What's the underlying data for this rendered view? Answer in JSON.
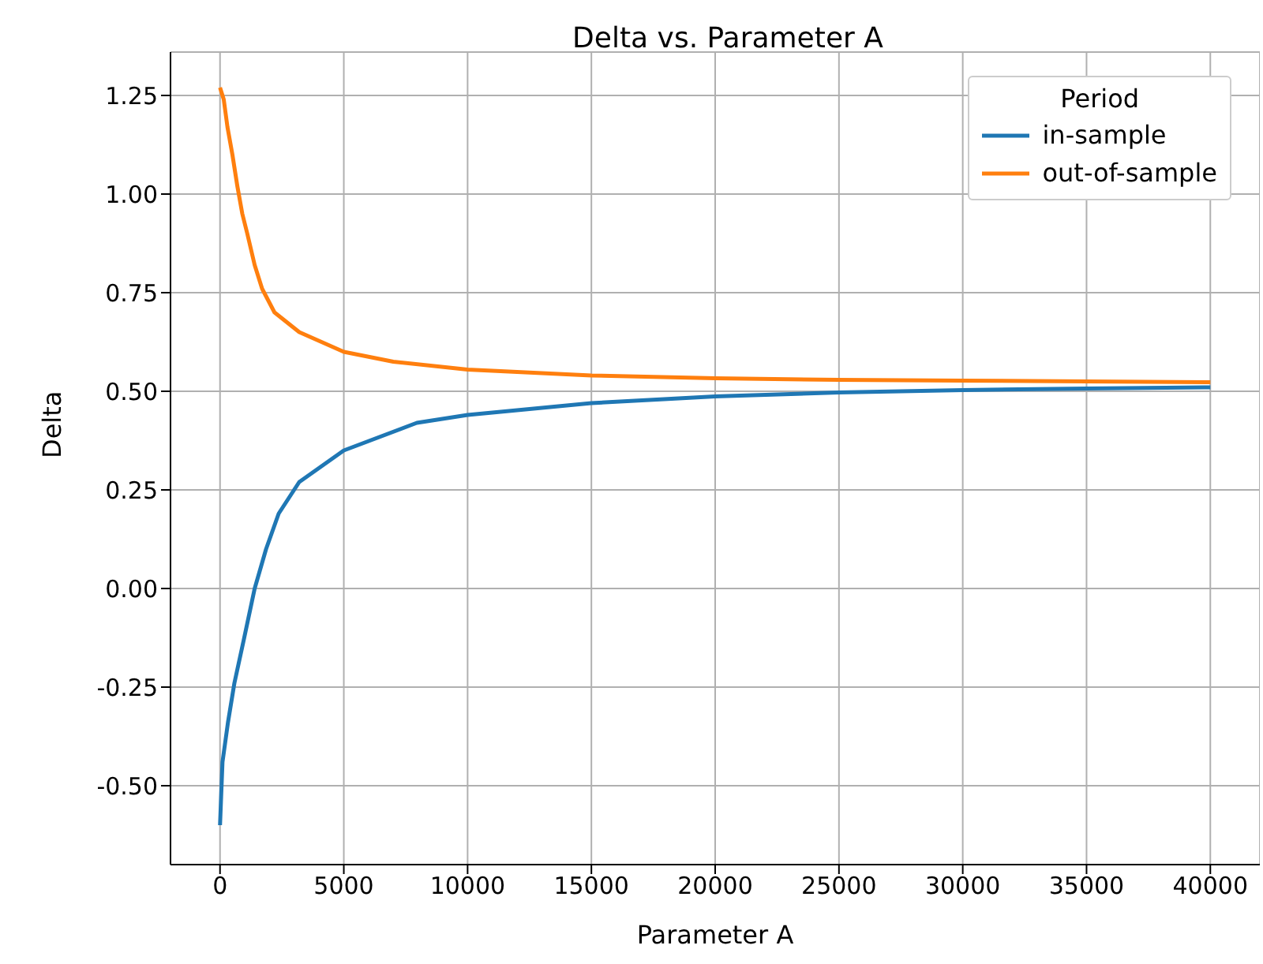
{
  "chart_data": {
    "type": "line",
    "title": "Delta vs. Parameter A",
    "xlabel": "Parameter A",
    "ylabel": "Delta",
    "legend_title": "Period",
    "legend": "top right",
    "grid": true,
    "marker": "none",
    "line_style": "solid",
    "xlim": [
      -2000,
      42000
    ],
    "xticks": [
      0,
      5000,
      10000,
      15000,
      20000,
      25000,
      30000,
      35000,
      40000
    ],
    "ylim": [
      -0.7,
      1.36
    ],
    "yticks": [
      {
        "value": -0.5,
        "label": "-0.50"
      },
      -0.25,
      {
        "value": 0,
        "label": "0.00"
      },
      0.25,
      {
        "value": 0.5,
        "label": "0.50"
      },
      0.75,
      {
        "value": 1,
        "label": "1.00"
      },
      1.25
    ],
    "series": [
      {
        "name": "in-sample",
        "color": "#1f77b4",
        "x": [
          0,
          100,
          320,
          580,
          960,
          1400,
          1860,
          2370,
          3200,
          5000,
          7950,
          10000,
          15000,
          20000,
          25000,
          30000,
          35000,
          40000
        ],
        "values": [
          -0.6,
          -0.44,
          -0.34,
          -0.24,
          -0.13,
          0,
          0.1,
          0.19,
          0.27,
          0.35,
          0.42,
          0.44,
          0.47,
          0.487,
          0.497,
          0.503,
          0.507,
          0.51
        ]
      },
      {
        "name": "out-of-sample",
        "color": "#ff7f0e",
        "x": [
          0,
          150,
          300,
          500,
          700,
          900,
          1100,
          1400,
          1700,
          2200,
          3200,
          5000,
          7000,
          10000,
          15000,
          20000,
          25000,
          30000,
          35000,
          40000
        ],
        "values": [
          1.27,
          1.24,
          1.17,
          1.1,
          1.02,
          0.95,
          0.9,
          0.82,
          0.76,
          0.7,
          0.65,
          0.6,
          0.575,
          0.555,
          0.54,
          0.533,
          0.529,
          0.527,
          0.525,
          0.523
        ]
      }
    ]
  }
}
